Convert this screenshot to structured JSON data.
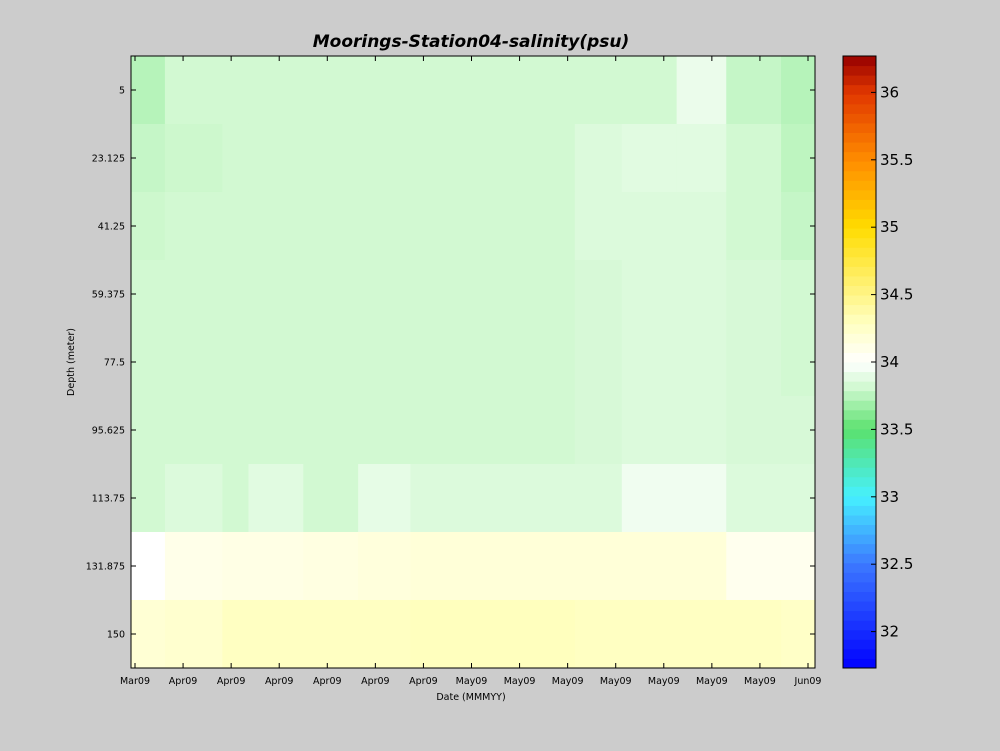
{
  "chart_data": {
    "type": "heatmap",
    "title": "Moorings-Station04-salinity(psu)",
    "xlabel": "Date (MMMYY)",
    "ylabel": "Depth (meter)",
    "x_tick_labels": [
      "Mar09",
      "Apr09",
      "Apr09",
      "Apr09",
      "Apr09",
      "Apr09",
      "Apr09",
      "May09",
      "May09",
      "May09",
      "May09",
      "May09",
      "May09",
      "May09",
      "Jun09"
    ],
    "y_tick_labels": [
      "5",
      "23.125",
      "41.25",
      "59.375",
      "77.5",
      "95.625",
      "113.75",
      "131.875",
      "150"
    ],
    "y_range": [
      -4.06,
      159.06
    ],
    "y_reversed": true,
    "colorbar": {
      "range": [
        31.73,
        36.27
      ],
      "tick_labels": [
        "32",
        "32.5",
        "33",
        "33.5",
        "34",
        "34.5",
        "35",
        "35.5",
        "36"
      ],
      "tick_values": [
        32,
        32.5,
        33,
        33.5,
        34,
        34.5,
        35,
        35.5,
        36
      ]
    },
    "depth_levels": [
      5,
      23.125,
      41.25,
      59.375,
      77.5,
      95.625,
      113.75,
      131.875,
      150
    ],
    "column_weights": [
      1.3,
      2.2,
      1.0,
      2.1,
      2.1,
      2.0,
      2.1,
      2.0,
      2.2,
      1.8,
      2.1,
      1.9,
      2.1,
      1.3
    ],
    "salinity_grid": [
      [
        33.74,
        33.82,
        33.82,
        33.82,
        33.82,
        33.82,
        33.82,
        33.82,
        33.82,
        33.82,
        33.82,
        33.92,
        33.78,
        33.74
      ],
      [
        33.78,
        33.8,
        33.82,
        33.82,
        33.82,
        33.82,
        33.82,
        33.82,
        33.82,
        33.86,
        33.88,
        33.88,
        33.82,
        33.76
      ],
      [
        33.8,
        33.82,
        33.82,
        33.82,
        33.82,
        33.82,
        33.82,
        33.82,
        33.82,
        33.86,
        33.86,
        33.86,
        33.82,
        33.78
      ],
      [
        33.82,
        33.82,
        33.82,
        33.82,
        33.82,
        33.82,
        33.82,
        33.82,
        33.82,
        33.84,
        33.86,
        33.86,
        33.84,
        33.82
      ],
      [
        33.82,
        33.82,
        33.82,
        33.82,
        33.82,
        33.82,
        33.82,
        33.82,
        33.82,
        33.84,
        33.86,
        33.86,
        33.84,
        33.82
      ],
      [
        33.82,
        33.82,
        33.82,
        33.82,
        33.82,
        33.82,
        33.82,
        33.82,
        33.82,
        33.84,
        33.86,
        33.86,
        33.84,
        33.84
      ],
      [
        33.82,
        33.86,
        33.82,
        33.88,
        33.82,
        33.9,
        33.86,
        33.86,
        33.86,
        33.86,
        33.94,
        33.94,
        33.86,
        33.86
      ],
      [
        34.0,
        34.1,
        34.12,
        34.12,
        34.14,
        34.16,
        34.18,
        34.18,
        34.18,
        34.18,
        34.18,
        34.18,
        34.08,
        34.08
      ],
      [
        34.2,
        34.22,
        34.28,
        34.28,
        34.28,
        34.28,
        34.3,
        34.3,
        34.3,
        34.28,
        34.28,
        34.28,
        34.28,
        34.26
      ]
    ]
  }
}
